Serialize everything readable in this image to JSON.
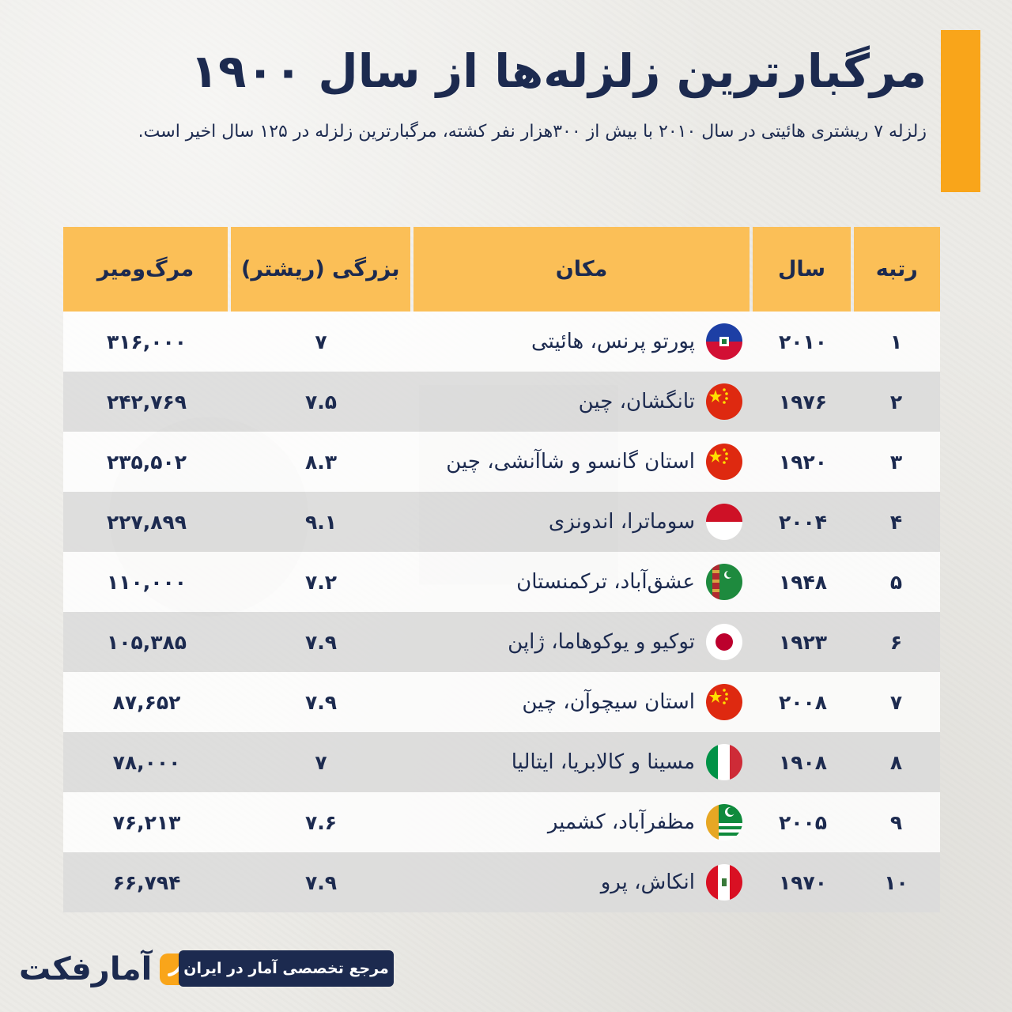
{
  "header": {
    "title": "مرگبارترین  زلزله‌ها از سال ۱۹۰۰",
    "subtitle": "زلزله ۷ ریشتری هائیتی در سال ۲۰۱۰ با بیش از ۳۰۰هزار نفر کشته، مرگبارترین زلزله در ۱۲۵ سال اخیر است."
  },
  "colors": {
    "accent": "#f9a51a",
    "header_cell": "#fbbf57",
    "navy": "#1c2a4f",
    "row_light": "#ffffff",
    "row_dark": "#dadada"
  },
  "chart_data": {
    "type": "table",
    "columns": [
      "رتبه",
      "سال",
      "مکان",
      "بزرگی (ریشتر)",
      "مرگ‌ومیر"
    ],
    "rows": [
      {
        "rank": "۱",
        "year": "۲۰۱۰",
        "place": "پورتو پرنس، هائیتی",
        "flag": "haiti-flag-icon",
        "magnitude": "۷",
        "deaths": "۳۱۶,۰۰۰"
      },
      {
        "rank": "۲",
        "year": "۱۹۷۶",
        "place": "تانگشان، چین",
        "flag": "china-flag-icon",
        "magnitude": "۷.۵",
        "deaths": "۲۴۲,۷۶۹"
      },
      {
        "rank": "۳",
        "year": "۱۹۲۰",
        "place": "استان گانسو و شاآنشی، چین",
        "flag": "china-flag-icon",
        "magnitude": "۸.۳",
        "deaths": "۲۳۵,۵۰۲"
      },
      {
        "rank": "۴",
        "year": "۲۰۰۴",
        "place": "سوماترا، اندونزی",
        "flag": "indonesia-flag-icon",
        "magnitude": "۹.۱",
        "deaths": "۲۲۷,۸۹۹"
      },
      {
        "rank": "۵",
        "year": "۱۹۴۸",
        "place": "عشق‌آباد، ترکمنستان",
        "flag": "turkmenistan-flag-icon",
        "magnitude": "۷.۲",
        "deaths": "۱۱۰,۰۰۰"
      },
      {
        "rank": "۶",
        "year": "۱۹۲۳",
        "place": "توکیو و یوکوهاما، ژاپن",
        "flag": "japan-flag-icon",
        "magnitude": "۷.۹",
        "deaths": "۱۰۵,۳۸۵"
      },
      {
        "rank": "۷",
        "year": "۲۰۰۸",
        "place": "استان سیچوآن، چین",
        "flag": "china-flag-icon",
        "magnitude": "۷.۹",
        "deaths": "۸۷,۶۵۲"
      },
      {
        "rank": "۸",
        "year": "۱۹۰۸",
        "place": "مسینا و کالابریا، ایتالیا",
        "flag": "italy-flag-icon",
        "magnitude": "۷",
        "deaths": "۷۸,۰۰۰"
      },
      {
        "rank": "۹",
        "year": "۲۰۰۵",
        "place": "مظفرآباد، کشمیر",
        "flag": "kashmir-flag-icon",
        "magnitude": "۷.۶",
        "deaths": "۷۶,۲۱۳"
      },
      {
        "rank": "۱۰",
        "year": "۱۹۷۰",
        "place": "انکاش، پرو",
        "flag": "peru-flag-icon",
        "magnitude": "۷.۹",
        "deaths": "۶۶,۷۹۴"
      }
    ]
  },
  "footer": {
    "logo_text": "آمارفکت",
    "logo_icon": "amarfact-logo-icon",
    "tagline": "مرجع تخصصی آمار در ایران"
  }
}
